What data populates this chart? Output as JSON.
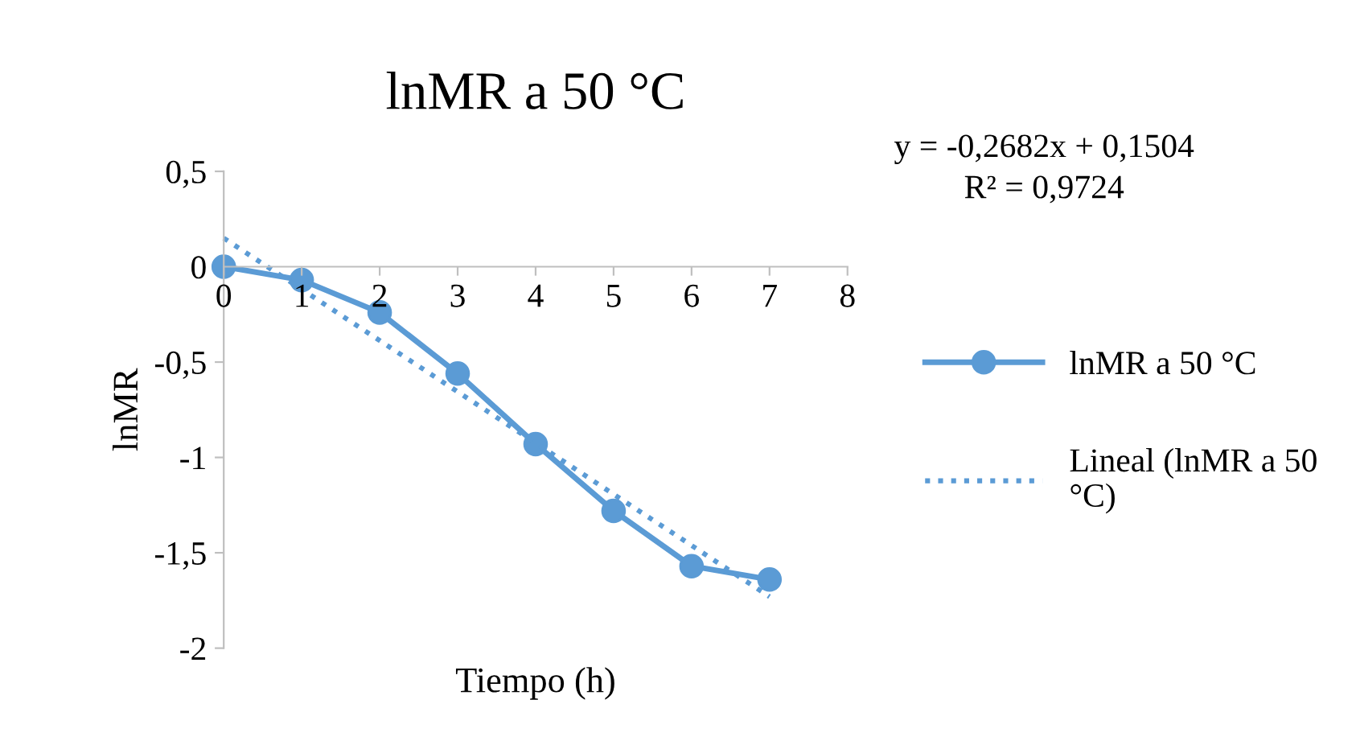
{
  "chart_data": {
    "type": "line",
    "title": "lnMR a 50 °C",
    "xlabel": "Tiempo (h)",
    "ylabel": "lnMR",
    "x": [
      0,
      1,
      2,
      3,
      4,
      5,
      6,
      7
    ],
    "series": [
      {
        "name": "lnMR a 50 °C",
        "color": "#5b9bd5",
        "values": [
          0,
          -0.07,
          -0.24,
          -0.56,
          -0.93,
          -1.28,
          -1.57,
          -1.64
        ],
        "marker": "circle",
        "line_style": "solid"
      },
      {
        "name": "Lineal (lnMR a 50 °C)",
        "color": "#5b9bd5",
        "x": [
          0,
          7
        ],
        "values": [
          0.15,
          -1.73
        ],
        "marker": "none",
        "line_style": "dotted"
      }
    ],
    "xlim": [
      0,
      8
    ],
    "xticks": [
      0,
      1,
      2,
      3,
      4,
      5,
      6,
      7,
      8
    ],
    "ylim": [
      -2,
      0.5
    ],
    "yticks": [
      {
        "value": -2,
        "label": "-2"
      },
      {
        "value": -1.5,
        "label": "-1,5"
      },
      {
        "value": -1,
        "label": "-1"
      },
      {
        "value": -0.5,
        "label": "-0,5"
      },
      {
        "value": 0,
        "label": "0"
      },
      {
        "value": 0.5,
        "label": "0,5"
      }
    ],
    "annotations": [
      "y = -0,2682x + 0,1504",
      "R² = 0,9724"
    ],
    "legend": "right",
    "grid": false
  }
}
